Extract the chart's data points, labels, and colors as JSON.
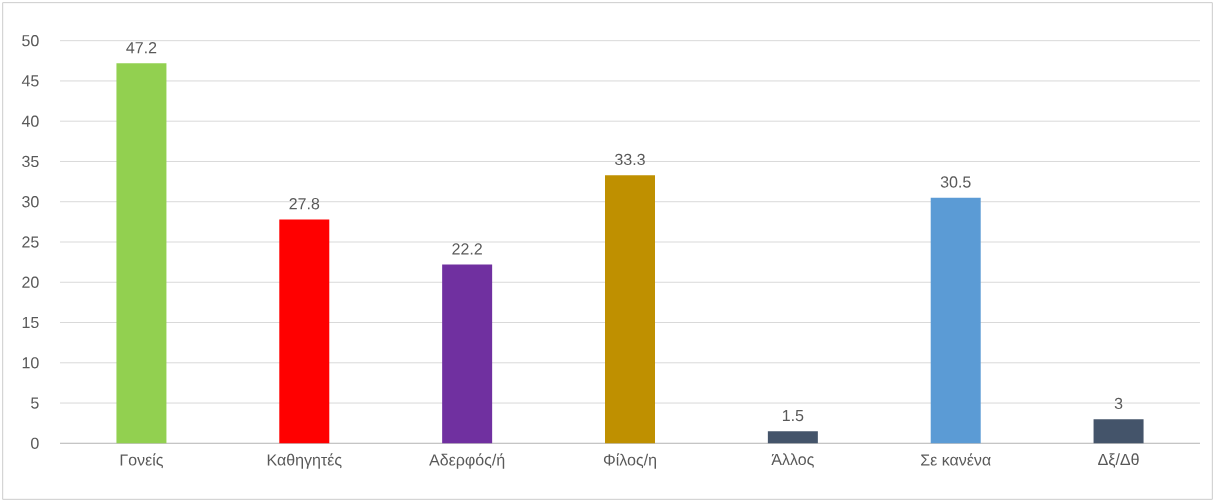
{
  "chart_data": {
    "type": "bar",
    "categories": [
      "Γονείς",
      "Καθηγητές",
      "Αδερφός/ή",
      "Φίλος/η",
      "Άλλος",
      "Σε κανένα",
      "Δξ/Δθ"
    ],
    "values": [
      47.2,
      27.8,
      22.2,
      33.3,
      1.5,
      30.5,
      3
    ],
    "colors": [
      "#92d050",
      "#ff0000",
      "#7030a0",
      "#bf9000",
      "#44546a",
      "#5b9bd5",
      "#44546a"
    ],
    "ylim": [
      0,
      50
    ],
    "yticks": [
      0,
      5,
      10,
      15,
      20,
      25,
      30,
      35,
      40,
      45,
      50
    ],
    "grid": "y",
    "data_labels": true
  }
}
